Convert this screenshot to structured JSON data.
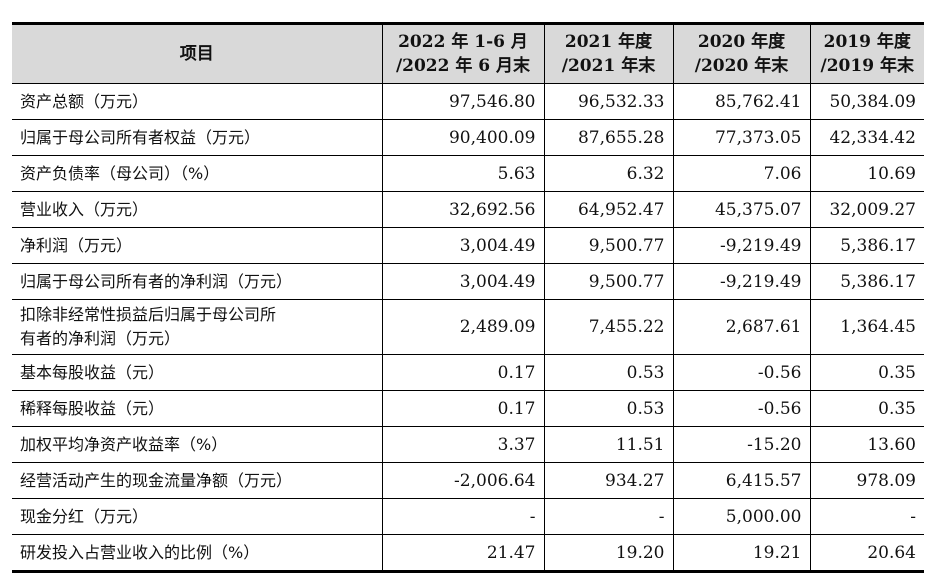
{
  "header": {
    "item": "项目",
    "columns": [
      {
        "line1": "2022 年 1-6 月",
        "line2": "/2022 年 6 月末"
      },
      {
        "line1": "2021 年度",
        "line2": "/2021 年末"
      },
      {
        "line1": "2020 年度",
        "line2": "/2020 年末"
      },
      {
        "line1": "2019 年度",
        "line2": "/2019 年末"
      }
    ]
  },
  "rows": [
    {
      "label": "资产总额（万元）",
      "values": [
        "97,546.80",
        "96,532.33",
        "85,762.41",
        "50,384.09"
      ]
    },
    {
      "label": "归属于母公司所有者权益（万元）",
      "values": [
        "90,400.09",
        "87,655.28",
        "77,373.05",
        "42,334.42"
      ]
    },
    {
      "label": "资产负债率（母公司）（%）",
      "values": [
        "5.63",
        "6.32",
        "7.06",
        "10.69"
      ]
    },
    {
      "label": "营业收入（万元）",
      "values": [
        "32,692.56",
        "64,952.47",
        "45,375.07",
        "32,009.27"
      ]
    },
    {
      "label": "净利润（万元）",
      "values": [
        "3,004.49",
        "9,500.77",
        "-9,219.49",
        "5,386.17"
      ]
    },
    {
      "label": "归属于母公司所有者的净利润（万元）",
      "values": [
        "3,004.49",
        "9,500.77",
        "-9,219.49",
        "5,386.17"
      ]
    },
    {
      "label_line1": "扣除非经常性损益后归属于母公司所",
      "label_line2": "有者的净利润（万元）",
      "values": [
        "2,489.09",
        "7,455.22",
        "2,687.61",
        "1,364.45"
      ]
    },
    {
      "label": "基本每股收益（元）",
      "values": [
        "0.17",
        "0.53",
        "-0.56",
        "0.35"
      ]
    },
    {
      "label": "稀释每股收益（元）",
      "values": [
        "0.17",
        "0.53",
        "-0.56",
        "0.35"
      ]
    },
    {
      "label": "加权平均净资产收益率（%）",
      "values": [
        "3.37",
        "11.51",
        "-15.20",
        "13.60"
      ]
    },
    {
      "label": "经营活动产生的现金流量净额（万元）",
      "values": [
        "-2,006.64",
        "934.27",
        "6,415.57",
        "978.09"
      ]
    },
    {
      "label": "现金分红（万元）",
      "values": [
        "-",
        "-",
        "5,000.00",
        "-"
      ]
    },
    {
      "label": "研发投入占营业收入的比例（%）",
      "values": [
        "21.47",
        "19.20",
        "19.21",
        "20.64"
      ]
    }
  ]
}
